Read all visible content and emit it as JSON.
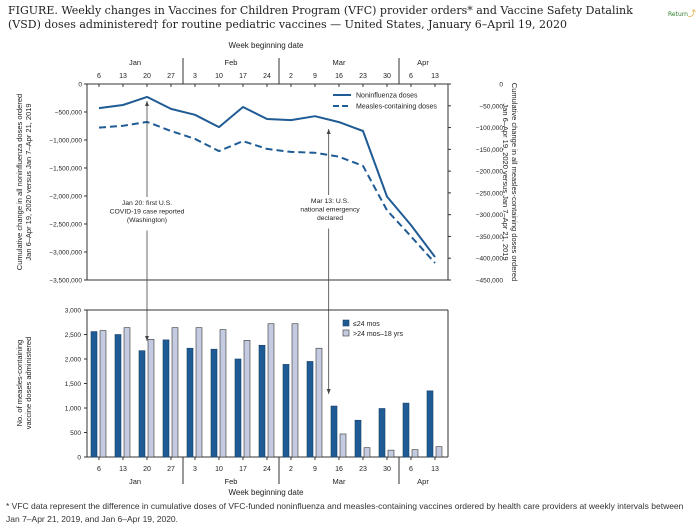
{
  "header": {
    "title": "FIGURE. Weekly changes in Vaccines for Children Program (VFC) provider orders* and Vaccine Safety Datalink (VSD) doses administered† for routine pediatric vaccines — United States, January 6–April 19, 2020",
    "return_label": "Return"
  },
  "footnote": "* VFC data represent the difference in cumulative doses of VFC-funded noninfluenza and measles-containing vaccines ordered by health care providers at weekly intervals between Jan 7–Apr 21, 2019, and Jan 6–Apr 19, 2020.",
  "colors": {
    "dark_blue": "#1f5b94",
    "light_blue": "#c4cbe0",
    "axis": "#333333"
  },
  "chart_data": [
    {
      "type": "line",
      "title": "",
      "xlabel": "Week beginning date",
      "x": [
        "6",
        "13",
        "20",
        "27",
        "3",
        "10",
        "17",
        "24",
        "2",
        "9",
        "16",
        "23",
        "30",
        "6",
        "13"
      ],
      "months": [
        {
          "label": "Jan",
          "weeks": [
            0,
            3
          ]
        },
        {
          "label": "Feb",
          "weeks": [
            4,
            7
          ]
        },
        {
          "label": "Mar",
          "weeks": [
            8,
            12
          ]
        },
        {
          "label": "Apr",
          "weeks": [
            13,
            14
          ]
        }
      ],
      "ylabel_left": "Cumulative change in all noninfluenza doses ordered Jan 6–Apr 19, 2020 versus Jan 7–Apr 21, 2019",
      "ylabel_right": "Cumulative change in all measles-containing doses ordered Jan 6–Apr 19, 2020 versus Jan 7–Apr 21, 2019",
      "ylim_left": [
        -3500000,
        0
      ],
      "ylim_right": [
        -450000,
        0
      ],
      "yticks_left": [
        0,
        -500000,
        -1000000,
        -1500000,
        -2000000,
        -2500000,
        -3000000,
        -3500000
      ],
      "yticks_left_labels": [
        "0",
        "−500,000",
        "−1,000,000",
        "−1,500,000",
        "−2,000,000",
        "−2,500,000",
        "−3,000,000",
        "−3,500,000"
      ],
      "yticks_right": [
        0,
        -50000,
        -100000,
        -150000,
        -200000,
        -250000,
        -300000,
        -350000,
        -400000,
        -450000
      ],
      "yticks_right_labels": [
        "0",
        "−50,000",
        "−100,000",
        "−150,000",
        "−200,000",
        "−250,000",
        "−300,000",
        "−350,000",
        "−400,000",
        "−450,000"
      ],
      "legend_position": "top-right",
      "series": [
        {
          "name": "Noninfluenza doses",
          "axis": "left",
          "style": "solid",
          "values": [
            -430000,
            -375000,
            -230000,
            -445000,
            -550000,
            -770000,
            -410000,
            -625000,
            -645000,
            -575000,
            -680000,
            -840000,
            -2010000,
            -2520000,
            -3090000
          ]
        },
        {
          "name": "Measles-containing doses",
          "axis": "right",
          "style": "dashed",
          "values": [
            -100000,
            -96000,
            -87000,
            -108000,
            -126000,
            -154000,
            -131000,
            -149000,
            -156000,
            -158000,
            -167000,
            -188000,
            -290000,
            -350000,
            -411000
          ]
        }
      ],
      "annotations": [
        {
          "week": 2,
          "text": [
            "Jan 20: first U.S.",
            "COVID-19 case reported",
            "(Washington)"
          ]
        },
        {
          "week": 9.57,
          "text": [
            "Mar 13: U.S.",
            "national emergency",
            "declared"
          ]
        }
      ]
    },
    {
      "type": "bar",
      "xlabel": "Week beginning date",
      "ylabel": "No. of measles-containing vaccine doses administered",
      "categories": [
        "6",
        "13",
        "20",
        "27",
        "3",
        "10",
        "17",
        "24",
        "2",
        "9",
        "16",
        "23",
        "30",
        "6",
        "13"
      ],
      "ylim": [
        0,
        3000
      ],
      "yticks": [
        0,
        500,
        1000,
        1500,
        2000,
        2500,
        3000
      ],
      "yticks_labels": [
        "0",
        "500",
        "1,000",
        "1,500",
        "2,000",
        "2,500",
        "3,000"
      ],
      "legend_position": "top-right",
      "series": [
        {
          "name": "≤24 mos",
          "values": [
            2560,
            2500,
            2170,
            2390,
            2220,
            2200,
            2000,
            2280,
            1890,
            1950,
            1040,
            750,
            990,
            1100,
            1350
          ]
        },
        {
          "name": ">24 mos–18 yrs",
          "values": [
            2580,
            2640,
            2400,
            2640,
            2640,
            2600,
            2380,
            2720,
            2720,
            2220,
            470,
            190,
            140,
            150,
            210
          ]
        }
      ]
    }
  ]
}
